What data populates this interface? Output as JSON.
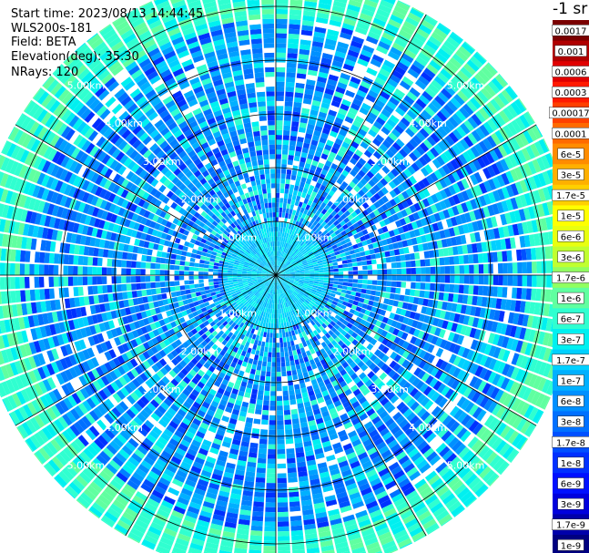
{
  "header": {
    "start_time": "Start time: 2023/08/13 14:44:45",
    "instrument": "WLS200s-181",
    "field": "Field: BETA",
    "elevation": "Elevation(deg): 35.30",
    "nrays": "NRays: 120"
  },
  "colorbar": {
    "title": "-1 sr",
    "labels": [
      "0.0017",
      "0.001",
      "0.0006",
      "0.0003",
      "0.00017",
      "0.0001",
      "6e-5",
      "3e-5",
      "1.7e-5",
      "1e-5",
      "6e-6",
      "3e-6",
      "1.7e-6",
      "1e-6",
      "6e-7",
      "3e-7",
      "1.7e-7",
      "1e-7",
      "6e-8",
      "3e-8",
      "1.7e-8",
      "1e-8",
      "6e-9",
      "3e-9",
      "1.7e-9",
      "1e-9"
    ],
    "colors": [
      "#7a0000",
      "#b00000",
      "#e00000",
      "#ff1a00",
      "#ff4000",
      "#ff6a00",
      "#ff8c00",
      "#ffb000",
      "#ffd000",
      "#ffff00",
      "#e8ff10",
      "#c0ff30",
      "#90ff60",
      "#60ffa0",
      "#30ffd0",
      "#00f0f0",
      "#00d0ff",
      "#00b0ff",
      "#0090ff",
      "#0070ff",
      "#0050ff",
      "#0030ff",
      "#0010ff",
      "#0000dd",
      "#0000aa",
      "#000080"
    ]
  },
  "chart_data": {
    "type": "heatmap",
    "projection": "polar (PPI scan)",
    "field": "BETA",
    "nrays": 120,
    "range_ring_labels": [
      "1.00km",
      "2.00km",
      "3.00km",
      "4.00km",
      "5.00km"
    ],
    "max_range_km": 5.6,
    "spoke_angles_deg": [
      0,
      30,
      60,
      90,
      120,
      150,
      180,
      210,
      240,
      270,
      300,
      330
    ],
    "dominant_value_range": [
      "1e-8",
      "1e-7"
    ],
    "grid": true
  }
}
